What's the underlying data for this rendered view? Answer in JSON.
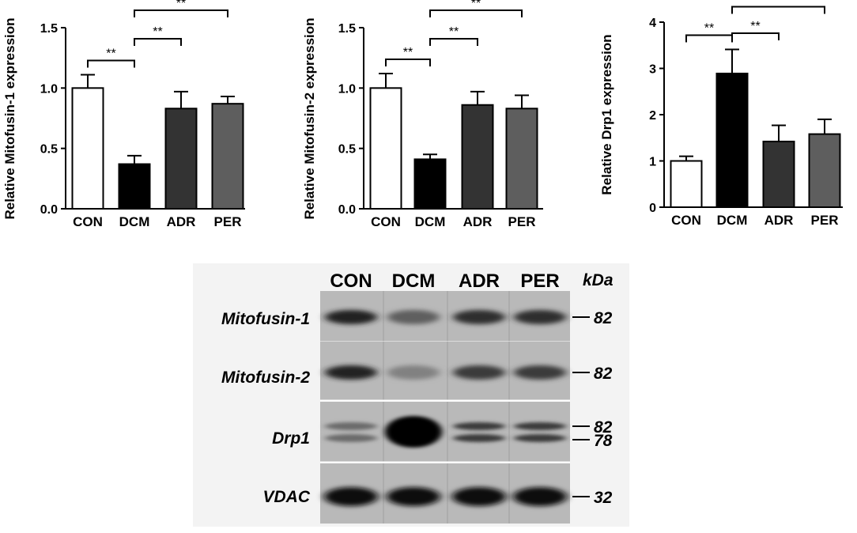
{
  "chart_data": [
    {
      "type": "bar",
      "ylabel": "Relative Mitofusin-1 expression",
      "categories": [
        "CON",
        "DCM",
        "ADR",
        "PER"
      ],
      "values": [
        1.0,
        0.37,
        0.83,
        0.87
      ],
      "errors": [
        0.11,
        0.07,
        0.14,
        0.06
      ],
      "ylim": [
        0,
        1.5
      ],
      "yticks": [
        "0.0",
        "0.5",
        "1.0",
        "1.5"
      ],
      "colors": [
        "#ffffff",
        "#000000",
        "#333333",
        "#5e5e5e"
      ],
      "significance": [
        {
          "from": 0,
          "to": 1,
          "label": "**"
        },
        {
          "from": 1,
          "to": 2,
          "label": "**"
        },
        {
          "from": 1,
          "to": 3,
          "label": "**"
        }
      ]
    },
    {
      "type": "bar",
      "ylabel": "Relative Mitofusin-2 expression",
      "categories": [
        "CON",
        "DCM",
        "ADR",
        "PER"
      ],
      "values": [
        1.0,
        0.41,
        0.86,
        0.83
      ],
      "errors": [
        0.12,
        0.04,
        0.11,
        0.11
      ],
      "ylim": [
        0,
        1.5
      ],
      "yticks": [
        "0.0",
        "0.5",
        "1.0",
        "1.5"
      ],
      "colors": [
        "#ffffff",
        "#000000",
        "#333333",
        "#5e5e5e"
      ],
      "significance": [
        {
          "from": 0,
          "to": 1,
          "label": "**"
        },
        {
          "from": 1,
          "to": 2,
          "label": "**"
        },
        {
          "from": 1,
          "to": 3,
          "label": "**"
        }
      ]
    },
    {
      "type": "bar",
      "ylabel": "Relative Drp1 expression",
      "categories": [
        "CON",
        "DCM",
        "ADR",
        "PER"
      ],
      "values": [
        1.0,
        2.89,
        1.42,
        1.58
      ],
      "errors": [
        0.1,
        0.52,
        0.35,
        0.32
      ],
      "ylim": [
        0,
        4
      ],
      "yticks": [
        "0",
        "1",
        "2",
        "3",
        "4"
      ],
      "colors": [
        "#ffffff",
        "#000000",
        "#333333",
        "#5e5e5e"
      ],
      "significance": [
        {
          "from": 0,
          "to": 1,
          "label": "**"
        },
        {
          "from": 1,
          "to": 2,
          "label": "**"
        },
        {
          "from": 1,
          "to": 3,
          "label": "**"
        }
      ]
    }
  ],
  "blot": {
    "lanes": [
      "CON",
      "DCM",
      "ADR",
      "PER"
    ],
    "unit": "kDa",
    "rows": [
      {
        "name": "Mitofusin-1",
        "markers": [
          "82"
        ],
        "intensity": [
          0.85,
          0.6,
          0.8,
          0.8
        ]
      },
      {
        "name": "Mitofusin-2",
        "markers": [
          "82"
        ],
        "intensity": [
          0.85,
          0.45,
          0.75,
          0.75
        ]
      },
      {
        "name": "Drp1",
        "markers": [
          "82",
          "78"
        ],
        "intensity": [
          0.55,
          1.0,
          0.75,
          0.75
        ]
      },
      {
        "name": "VDAC",
        "markers": [
          "32"
        ],
        "intensity": [
          0.95,
          0.95,
          0.95,
          0.95
        ]
      }
    ]
  }
}
